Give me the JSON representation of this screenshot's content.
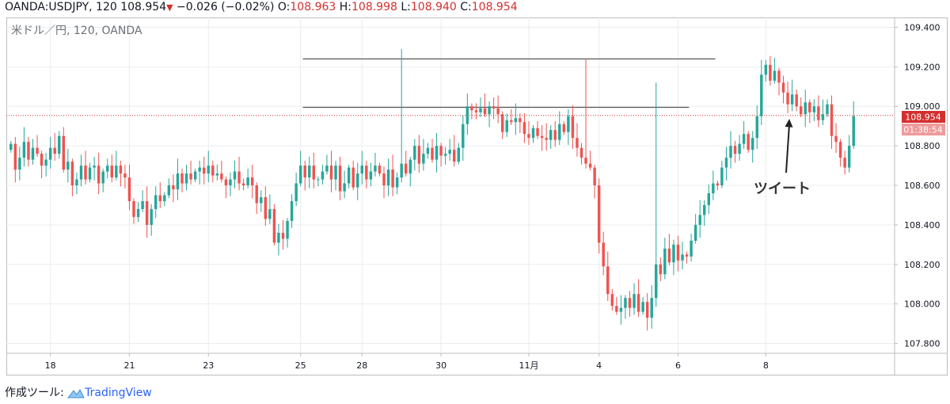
{
  "header": {
    "symbol": "OANDA:USDJPY",
    "interval": ", 120",
    "last": "108.954",
    "change": "−0.026 (−0.02%)",
    "o_label": "O:",
    "o_value": "108.963",
    "h_label": "H:",
    "h_value": "108.998",
    "l_label": "L:",
    "l_value": "108.940",
    "c_label": "C:",
    "c_value": "108.954"
  },
  "chart_data": {
    "type": "candlestick",
    "title": "米ドル／円, 120, OANDA",
    "ylim": [
      107.75,
      109.45
    ],
    "y_ticks": [
      "109.400",
      "109.200",
      "109.000",
      "108.800",
      "108.600",
      "108.400",
      "108.200",
      "108.000",
      "107.800"
    ],
    "x_ticks": [
      "18",
      "21",
      "23",
      "25",
      "28",
      "30",
      "11月",
      "4",
      "6",
      "8"
    ],
    "last_price_label": "108.954",
    "countdown_label": "01:38:54",
    "annotation": "ツイート",
    "colors": {
      "up": "#26a69a",
      "down": "#ef5350",
      "grid": "#e9edf0",
      "trend": "#595959",
      "price_line": "#d32f2f"
    },
    "resistance_lines": [
      {
        "from_bar": 67,
        "to_bar": 160,
        "price": 109.24
      },
      {
        "from_bar": 67,
        "to_bar": 154,
        "price": 108.995
      }
    ],
    "wick_rules": [
      {
        "bar": 89,
        "high": 109.29
      },
      {
        "bar": 147,
        "high": 109.12
      },
      {
        "bar": 131,
        "high": 109.24
      }
    ],
    "closes": [
      108.81,
      108.68,
      108.74,
      108.82,
      108.73,
      108.79,
      108.76,
      108.7,
      108.73,
      108.79,
      108.76,
      108.85,
      108.68,
      108.72,
      108.6,
      108.63,
      108.7,
      108.63,
      108.69,
      108.7,
      108.61,
      108.67,
      108.7,
      108.64,
      108.7,
      108.66,
      108.64,
      108.52,
      108.44,
      108.48,
      108.52,
      108.4,
      108.48,
      108.55,
      108.52,
      108.55,
      108.6,
      108.58,
      108.66,
      108.61,
      108.66,
      108.63,
      108.67,
      108.69,
      108.66,
      108.7,
      108.65,
      108.66,
      108.63,
      108.6,
      108.63,
      108.67,
      108.61,
      108.6,
      108.64,
      108.6,
      108.51,
      108.54,
      108.43,
      108.48,
      108.31,
      108.36,
      108.33,
      108.42,
      108.52,
      108.61,
      108.7,
      108.64,
      108.7,
      108.63,
      108.63,
      108.67,
      108.7,
      108.63,
      108.7,
      108.57,
      108.61,
      108.69,
      108.59,
      108.66,
      108.7,
      108.63,
      108.67,
      108.7,
      108.66,
      108.6,
      108.68,
      108.59,
      108.64,
      108.71,
      108.66,
      108.73,
      108.8,
      108.71,
      108.76,
      108.79,
      108.73,
      108.8,
      108.75,
      108.76,
      108.78,
      108.72,
      108.79,
      108.91,
      109.0,
      108.98,
      108.97,
      108.99,
      108.96,
      109.0,
      108.99,
      108.96,
      108.87,
      108.93,
      108.92,
      108.94,
      108.92,
      108.86,
      108.84,
      108.89,
      108.85,
      108.84,
      108.83,
      108.88,
      108.83,
      108.91,
      108.87,
      108.95,
      108.84,
      108.79,
      108.74,
      108.71,
      108.69,
      108.6,
      108.31,
      108.19,
      108.05,
      107.99,
      107.96,
      107.98,
      108.03,
      107.98,
      108.05,
      107.96,
      108.01,
      107.93,
      108.03,
      108.2,
      108.15,
      108.28,
      108.21,
      108.3,
      108.22,
      108.25,
      108.24,
      108.32,
      108.4,
      108.45,
      108.5,
      108.56,
      108.61,
      108.6,
      108.69,
      108.74,
      108.8,
      108.76,
      108.81,
      108.86,
      108.78,
      108.84,
      108.95,
      109.16,
      109.21,
      109.13,
      109.18,
      109.12,
      109.07,
      109.01,
      109.06,
      109.0,
      108.96,
      109.02,
      108.97,
      109.0,
      108.93,
      108.96,
      109.01,
      108.85,
      108.82,
      108.74,
      108.69,
      108.8,
      108.95
    ]
  },
  "footer": {
    "made_with": "作成ツール:",
    "brand": "TradingView"
  }
}
